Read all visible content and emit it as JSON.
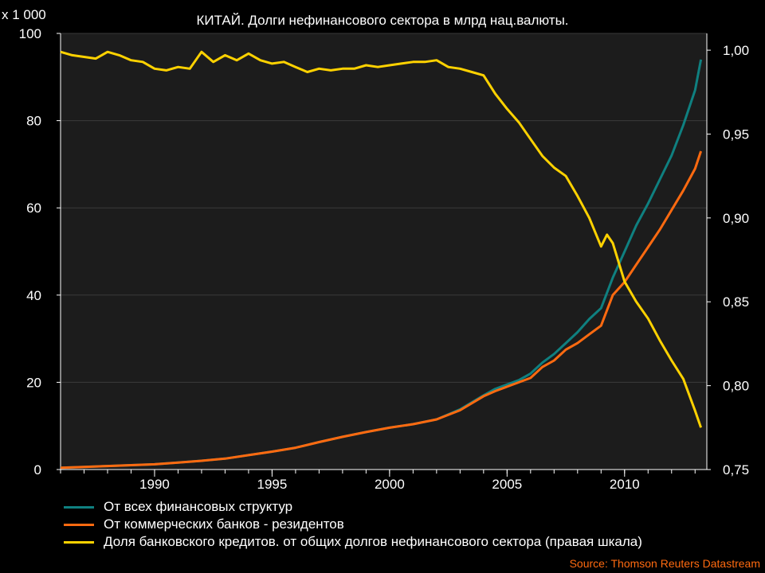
{
  "chart_data": {
    "type": "line",
    "title": "КИТАЙ. Долги нефинансового сектора в млрд нац.валюты.",
    "y_multiplier_label": "x 1 000",
    "source": "Source: Thomson Reuters Datastream",
    "xlim": [
      1986,
      2013.5
    ],
    "x_ticks": [
      1990,
      1995,
      2000,
      2005,
      2010
    ],
    "ylim_left": [
      0,
      100
    ],
    "y_ticks_left": [
      "0",
      "20",
      "40",
      "60",
      "80",
      "100"
    ],
    "ylim_right": [
      0.75,
      1.01
    ],
    "y_ticks_right": [
      "0,75",
      "0,80",
      "0,85",
      "0,90",
      "0,95",
      "1,00"
    ],
    "grid": "horizontal",
    "legend_position": "bottom",
    "background": "#1c1c1c",
    "series": [
      {
        "name": "От всех финансовых структур",
        "axis": "left",
        "color": "#0f8080",
        "points": [
          [
            1986.0,
            0.4
          ],
          [
            1987.0,
            0.6
          ],
          [
            1988.0,
            0.8
          ],
          [
            1989.0,
            1.0
          ],
          [
            1990.0,
            1.2
          ],
          [
            1991.0,
            1.6
          ],
          [
            1992.0,
            2.0
          ],
          [
            1993.0,
            2.5
          ],
          [
            1994.0,
            3.3
          ],
          [
            1995.0,
            4.1
          ],
          [
            1996.0,
            5.0
          ],
          [
            1997.0,
            6.3
          ],
          [
            1998.0,
            7.5
          ],
          [
            1999.0,
            8.6
          ],
          [
            2000.0,
            9.6
          ],
          [
            2001.0,
            10.4
          ],
          [
            2002.0,
            11.5
          ],
          [
            2003.0,
            13.8
          ],
          [
            2004.0,
            17.0
          ],
          [
            2004.5,
            18.5
          ],
          [
            2005.0,
            19.5
          ],
          [
            2005.5,
            20.5
          ],
          [
            2006.0,
            22.0
          ],
          [
            2006.5,
            24.5
          ],
          [
            2007.0,
            26.5
          ],
          [
            2007.5,
            29.0
          ],
          [
            2008.0,
            31.5
          ],
          [
            2008.5,
            34.5
          ],
          [
            2009.0,
            37.0
          ],
          [
            2009.5,
            44.0
          ],
          [
            2010.0,
            50.0
          ],
          [
            2010.5,
            56.0
          ],
          [
            2011.0,
            61.0
          ],
          [
            2011.5,
            66.5
          ],
          [
            2012.0,
            72.0
          ],
          [
            2012.5,
            79.0
          ],
          [
            2013.0,
            87.0
          ],
          [
            2013.25,
            94.0
          ]
        ]
      },
      {
        "name": "От коммерческих банков - резидентов",
        "axis": "left",
        "color": "#ff6a10",
        "points": [
          [
            1986.0,
            0.4
          ],
          [
            1987.0,
            0.6
          ],
          [
            1988.0,
            0.8
          ],
          [
            1989.0,
            1.0
          ],
          [
            1990.0,
            1.2
          ],
          [
            1991.0,
            1.6
          ],
          [
            1992.0,
            2.0
          ],
          [
            1993.0,
            2.5
          ],
          [
            1994.0,
            3.3
          ],
          [
            1995.0,
            4.1
          ],
          [
            1996.0,
            5.0
          ],
          [
            1997.0,
            6.3
          ],
          [
            1998.0,
            7.5
          ],
          [
            1999.0,
            8.6
          ],
          [
            2000.0,
            9.6
          ],
          [
            2001.0,
            10.4
          ],
          [
            2002.0,
            11.5
          ],
          [
            2003.0,
            13.6
          ],
          [
            2004.0,
            16.8
          ],
          [
            2004.5,
            18.0
          ],
          [
            2005.0,
            19.0
          ],
          [
            2005.5,
            20.0
          ],
          [
            2006.0,
            21.0
          ],
          [
            2006.5,
            23.5
          ],
          [
            2007.0,
            25.0
          ],
          [
            2007.5,
            27.5
          ],
          [
            2008.0,
            29.0
          ],
          [
            2008.5,
            31.0
          ],
          [
            2009.0,
            33.0
          ],
          [
            2009.5,
            40.0
          ],
          [
            2010.0,
            43.0
          ],
          [
            2010.5,
            47.0
          ],
          [
            2011.0,
            51.0
          ],
          [
            2011.5,
            55.0
          ],
          [
            2012.0,
            59.5
          ],
          [
            2012.5,
            64.0
          ],
          [
            2013.0,
            69.0
          ],
          [
            2013.25,
            73.0
          ]
        ]
      },
      {
        "name": "Доля банковского кредитов. от общих долгов нефинансового сектора (правая шкала)",
        "axis": "right",
        "color": "#ffd200",
        "points": [
          [
            1986.0,
            0.999
          ],
          [
            1986.5,
            0.997
          ],
          [
            1987.0,
            0.996
          ],
          [
            1987.5,
            0.995
          ],
          [
            1988.0,
            0.999
          ],
          [
            1988.5,
            0.997
          ],
          [
            1989.0,
            0.994
          ],
          [
            1989.5,
            0.993
          ],
          [
            1990.0,
            0.989
          ],
          [
            1990.5,
            0.988
          ],
          [
            1991.0,
            0.99
          ],
          [
            1991.5,
            0.989
          ],
          [
            1992.0,
            0.999
          ],
          [
            1992.5,
            0.993
          ],
          [
            1993.0,
            0.997
          ],
          [
            1993.5,
            0.994
          ],
          [
            1994.0,
            0.998
          ],
          [
            1994.5,
            0.994
          ],
          [
            1995.0,
            0.992
          ],
          [
            1995.5,
            0.993
          ],
          [
            1996.0,
            0.99
          ],
          [
            1996.5,
            0.987
          ],
          [
            1997.0,
            0.989
          ],
          [
            1997.5,
            0.988
          ],
          [
            1998.0,
            0.989
          ],
          [
            1998.5,
            0.989
          ],
          [
            1999.0,
            0.991
          ],
          [
            1999.5,
            0.99
          ],
          [
            2000.0,
            0.991
          ],
          [
            2000.5,
            0.992
          ],
          [
            2001.0,
            0.993
          ],
          [
            2001.5,
            0.993
          ],
          [
            2002.0,
            0.994
          ],
          [
            2002.5,
            0.99
          ],
          [
            2003.0,
            0.989
          ],
          [
            2003.5,
            0.987
          ],
          [
            2004.0,
            0.985
          ],
          [
            2004.5,
            0.974
          ],
          [
            2005.0,
            0.965
          ],
          [
            2005.5,
            0.957
          ],
          [
            2006.0,
            0.947
          ],
          [
            2006.5,
            0.937
          ],
          [
            2007.0,
            0.93
          ],
          [
            2007.5,
            0.925
          ],
          [
            2008.0,
            0.913
          ],
          [
            2008.5,
            0.9
          ],
          [
            2009.0,
            0.883
          ],
          [
            2009.25,
            0.89
          ],
          [
            2009.5,
            0.885
          ],
          [
            2010.0,
            0.862
          ],
          [
            2010.5,
            0.85
          ],
          [
            2011.0,
            0.84
          ],
          [
            2011.5,
            0.827
          ],
          [
            2012.0,
            0.815
          ],
          [
            2012.5,
            0.804
          ],
          [
            2013.0,
            0.785
          ],
          [
            2013.25,
            0.775
          ]
        ]
      }
    ]
  }
}
